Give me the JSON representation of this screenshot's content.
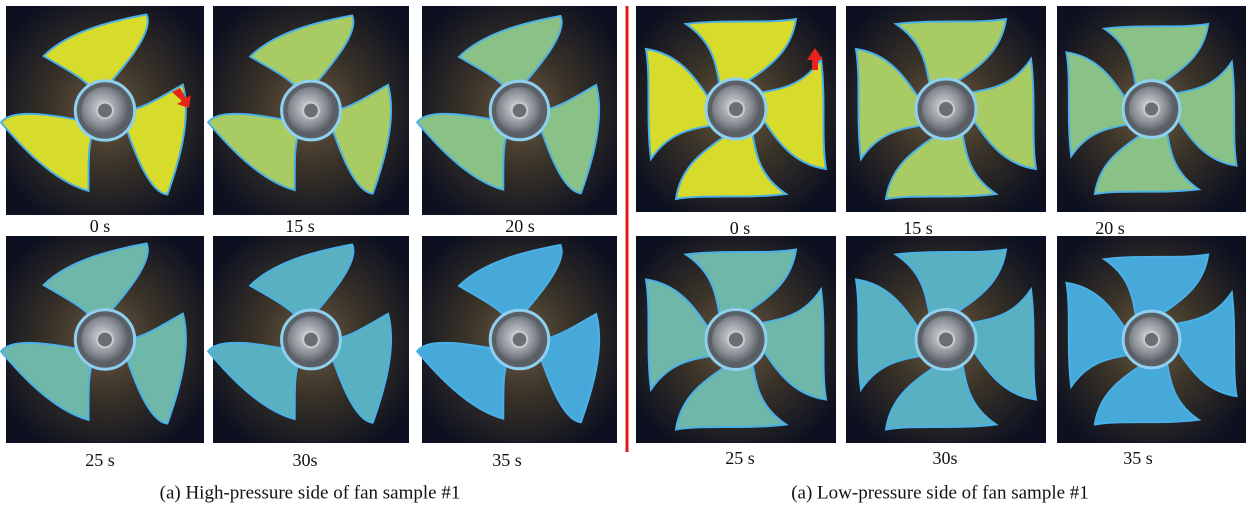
{
  "panels": {
    "high_pressure": {
      "labels": [
        "0 s",
        "15 s",
        "20 s",
        "25 s",
        "30s",
        "35 s"
      ],
      "caption": "(a) High-pressure side of fan sample #1"
    },
    "low_pressure": {
      "labels": [
        "0 s",
        "15 s",
        "20 s",
        "25 s",
        "30s",
        "35 s"
      ],
      "caption": "(a) Low-pressure side of fan sample #1"
    }
  }
}
